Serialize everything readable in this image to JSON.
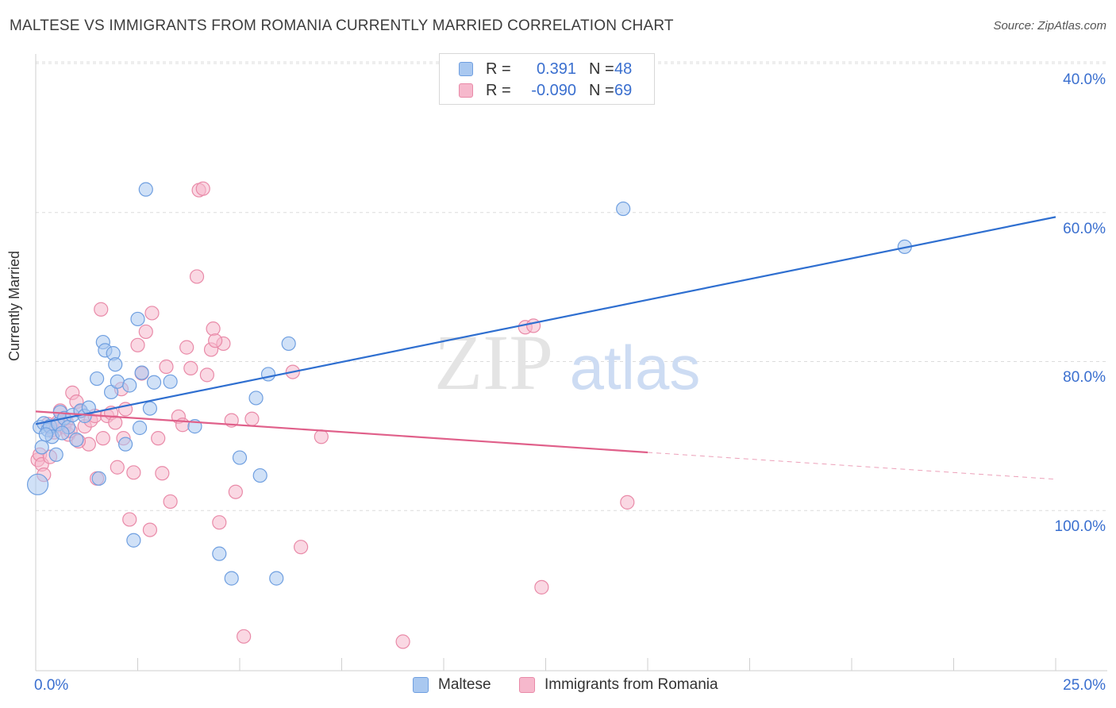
{
  "header": {
    "title": "MALTESE VS IMMIGRANTS FROM ROMANIA CURRENTLY MARRIED CORRELATION CHART",
    "source": "Source: ZipAtlas.com"
  },
  "legend": {
    "rows": [
      {
        "r_label": "R =",
        "r_value": "0.391",
        "n_label": "N =",
        "n_value": "48"
      },
      {
        "r_label": "R =",
        "r_value": "-0.090",
        "n_label": "N =",
        "n_value": "69"
      }
    ]
  },
  "bottom_legend": {
    "series0": "Maltese",
    "series1": "Immigrants from Romania"
  },
  "axes": {
    "ylabel": "Currently Married",
    "y_ticks": [
      "100.0%",
      "80.0%",
      "60.0%",
      "40.0%"
    ],
    "x_min_label": "0.0%",
    "x_max_label": "25.0%"
  },
  "watermark": {
    "zip": "ZIP",
    "atlas": "atlas"
  },
  "colors": {
    "blue_fill": "#a9c8f0",
    "blue_stroke": "#6f9fe0",
    "blue_line": "#2f6fd0",
    "pink_fill": "#f6b8cc",
    "pink_stroke": "#e98aa8",
    "pink_line": "#e0608a",
    "tick_text": "#3a6fcf",
    "grid": "#dcdcdc"
  },
  "chart_data": {
    "type": "scatter",
    "title": "MALTESE VS IMMIGRANTS FROM ROMANIA CURRENTLY MARRIED CORRELATION CHART",
    "xlabel": "",
    "ylabel": "Currently Married",
    "xlim": [
      0,
      25
    ],
    "ylim": [
      18.5,
      100
    ],
    "y_ticks": [
      40,
      60,
      80,
      100
    ],
    "grid": true,
    "series": [
      {
        "name": "Maltese",
        "r": 0.391,
        "n": 48,
        "trend": {
          "x": [
            0,
            25
          ],
          "y": [
            51.6,
            79.4
          ]
        },
        "points": [
          [
            0.1,
            51.2
          ],
          [
            0.15,
            48.5
          ],
          [
            0.2,
            51.7
          ],
          [
            0.3,
            50.8
          ],
          [
            0.35,
            51.3
          ],
          [
            0.4,
            49.9
          ],
          [
            0.5,
            47.5
          ],
          [
            0.55,
            51.6
          ],
          [
            0.6,
            53.2
          ],
          [
            0.7,
            52.4
          ],
          [
            0.8,
            51.2
          ],
          [
            0.9,
            52.8
          ],
          [
            1.0,
            49.5
          ],
          [
            1.1,
            53.4
          ],
          [
            1.2,
            52.7
          ],
          [
            1.3,
            53.8
          ],
          [
            1.5,
            57.7
          ],
          [
            1.55,
            44.3
          ],
          [
            1.65,
            62.6
          ],
          [
            1.7,
            61.5
          ],
          [
            1.85,
            55.9
          ],
          [
            1.9,
            61.1
          ],
          [
            1.95,
            59.6
          ],
          [
            2.0,
            57.3
          ],
          [
            2.2,
            48.9
          ],
          [
            2.3,
            56.8
          ],
          [
            2.4,
            36.0
          ],
          [
            2.5,
            65.7
          ],
          [
            2.55,
            51.1
          ],
          [
            2.6,
            58.5
          ],
          [
            2.7,
            83.1
          ],
          [
            2.8,
            53.7
          ],
          [
            2.9,
            57.2
          ],
          [
            3.3,
            57.3
          ],
          [
            3.9,
            51.3
          ],
          [
            4.5,
            34.2
          ],
          [
            4.8,
            30.9
          ],
          [
            5.0,
            47.1
          ],
          [
            5.4,
            55.1
          ],
          [
            5.5,
            44.7
          ],
          [
            5.7,
            58.3
          ],
          [
            5.9,
            30.9
          ],
          [
            6.2,
            62.4
          ],
          [
            14.4,
            80.5
          ],
          [
            21.3,
            75.4
          ],
          [
            0.05,
            43.5
          ],
          [
            0.25,
            50.2
          ],
          [
            0.65,
            50.4
          ]
        ]
      },
      {
        "name": "Immigrants from Romania",
        "r": -0.09,
        "n": 69,
        "trend": {
          "x": [
            0,
            15
          ],
          "y": [
            53.3,
            47.8
          ]
        },
        "trend_dashed": {
          "x": [
            15,
            25
          ],
          "y": [
            47.8,
            44.2
          ]
        },
        "points": [
          [
            0.05,
            46.8
          ],
          [
            0.1,
            47.5
          ],
          [
            0.15,
            46.2
          ],
          [
            0.2,
            44.8
          ],
          [
            0.3,
            51.6
          ],
          [
            0.4,
            50.8
          ],
          [
            0.5,
            51.4
          ],
          [
            0.6,
            53.4
          ],
          [
            0.7,
            51.2
          ],
          [
            0.75,
            52.0
          ],
          [
            0.8,
            50.2
          ],
          [
            0.9,
            55.8
          ],
          [
            1.0,
            54.6
          ],
          [
            1.1,
            53.3
          ],
          [
            1.2,
            51.3
          ],
          [
            1.3,
            48.9
          ],
          [
            1.35,
            52.1
          ],
          [
            1.45,
            52.7
          ],
          [
            1.5,
            44.3
          ],
          [
            1.6,
            67.0
          ],
          [
            1.65,
            49.7
          ],
          [
            1.75,
            52.7
          ],
          [
            1.85,
            53.1
          ],
          [
            1.95,
            51.8
          ],
          [
            2.0,
            45.8
          ],
          [
            2.1,
            56.3
          ],
          [
            2.15,
            49.7
          ],
          [
            2.2,
            53.6
          ],
          [
            2.3,
            38.8
          ],
          [
            2.4,
            45.1
          ],
          [
            2.5,
            62.2
          ],
          [
            2.6,
            58.4
          ],
          [
            2.7,
            64.0
          ],
          [
            2.8,
            37.4
          ],
          [
            2.85,
            66.5
          ],
          [
            3.0,
            49.7
          ],
          [
            3.1,
            45.0
          ],
          [
            3.2,
            59.3
          ],
          [
            3.3,
            41.2
          ],
          [
            3.5,
            52.6
          ],
          [
            3.6,
            51.5
          ],
          [
            3.7,
            61.9
          ],
          [
            3.8,
            59.1
          ],
          [
            4.0,
            83.0
          ],
          [
            4.1,
            83.2
          ],
          [
            4.2,
            58.2
          ],
          [
            4.3,
            61.6
          ],
          [
            4.35,
            64.4
          ],
          [
            4.5,
            38.4
          ],
          [
            4.6,
            62.4
          ],
          [
            4.8,
            52.1
          ],
          [
            4.9,
            42.5
          ],
          [
            5.1,
            23.1
          ],
          [
            5.3,
            52.3
          ],
          [
            6.3,
            58.6
          ],
          [
            6.5,
            35.1
          ],
          [
            7.0,
            49.9
          ],
          [
            9.0,
            22.4
          ],
          [
            12.0,
            64.6
          ],
          [
            12.2,
            64.8
          ],
          [
            12.4,
            29.7
          ],
          [
            14.5,
            41.1
          ],
          [
            0.35,
            47.2
          ],
          [
            0.45,
            50.5
          ],
          [
            0.55,
            51.9
          ],
          [
            0.85,
            50.7
          ],
          [
            1.05,
            49.3
          ],
          [
            3.95,
            71.4
          ],
          [
            4.4,
            62.8
          ]
        ]
      }
    ]
  }
}
